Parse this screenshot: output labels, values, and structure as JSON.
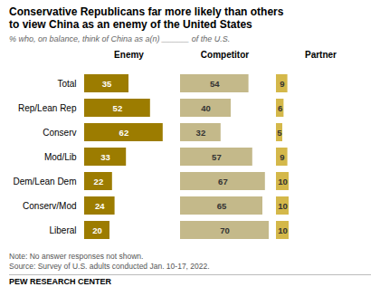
{
  "chart_data": {
    "type": "bar",
    "orientation": "horizontal",
    "title": "Conservative Republicans far more likely than others\nto view China as an enemy of the United States",
    "subtitle": "% who, on balance, think of China as a(n) ______ of the U.S.",
    "categories": [
      "Total",
      "Rep/Lean Rep",
      "Conserv",
      "Mod/Lib",
      "Dem/Lean Dem",
      "Conserv/Mod",
      "Liberal"
    ],
    "series": [
      {
        "name": "Enemy",
        "color": "#9c7c00",
        "values": [
          35,
          52,
          62,
          33,
          22,
          24,
          20
        ]
      },
      {
        "name": "Competitor",
        "color": "#c4b98a",
        "values": [
          54,
          40,
          32,
          57,
          67,
          65,
          70
        ]
      },
      {
        "name": "Partner",
        "color": "#d4b84a",
        "values": [
          9,
          6,
          5,
          9,
          10,
          10,
          10
        ]
      }
    ],
    "xlim": [
      0,
      70
    ],
    "data_labels": true,
    "tick_labels": "y",
    "annotations": [
      "Note: No answer responses not shown.",
      "Source: Survey of U.S. adults conducted Jan. 10-17, 2022.",
      "PEW RESEARCH CENTER"
    ]
  }
}
